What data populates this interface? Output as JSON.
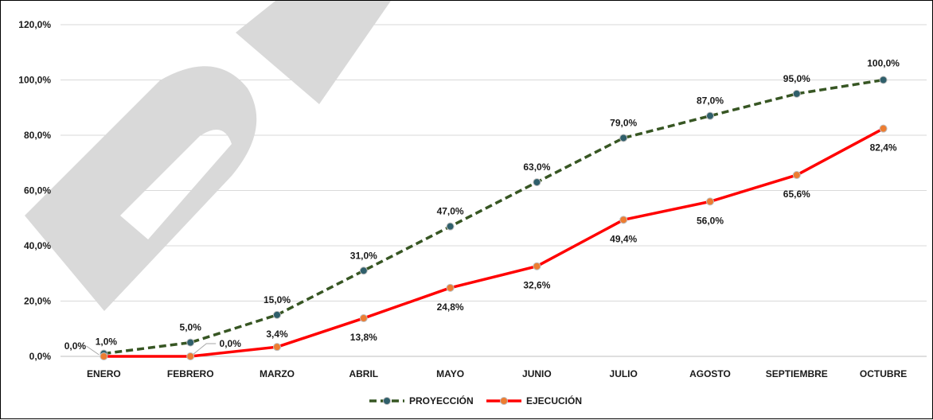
{
  "chart_data": {
    "type": "line",
    "categories": [
      "ENERO",
      "FEBRERO",
      "MARZO",
      "ABRIL",
      "MAYO",
      "JUNIO",
      "JULIO",
      "AGOSTO",
      "SEPTIEMBRE",
      "OCTUBRE"
    ],
    "ylim": [
      0,
      120
    ],
    "yticks": [
      "0,0%",
      "20,0%",
      "40,0%",
      "60,0%",
      "80,0%",
      "100,0%",
      "120,0%"
    ],
    "grid": true,
    "legend_position": "bottom",
    "series": [
      {
        "name": "PROYECCIÓN",
        "color": "#375623",
        "marker_color": "#2f5f6b",
        "style": "dashed",
        "values": [
          1.0,
          5.0,
          15.0,
          31.0,
          47.0,
          63.0,
          79.0,
          87.0,
          95.0,
          100.0
        ],
        "labels": [
          "1,0%",
          "5,0%",
          "15,0%",
          "31,0%",
          "47,0%",
          "63,0%",
          "79,0%",
          "87,0%",
          "95,0%",
          "100,0%"
        ]
      },
      {
        "name": "EJECUCIÓN",
        "color": "#ff0000",
        "marker_color": "#ed7d31",
        "style": "solid",
        "values": [
          0.0,
          0.0,
          3.4,
          13.8,
          24.8,
          32.6,
          49.4,
          56.0,
          65.6,
          82.4
        ],
        "labels": [
          "0,0%",
          "0,0%",
          "3,4%",
          "13,8%",
          "24,8%",
          "32,6%",
          "49,4%",
          "56,0%",
          "65,6%",
          "82,4%"
        ]
      }
    ]
  }
}
